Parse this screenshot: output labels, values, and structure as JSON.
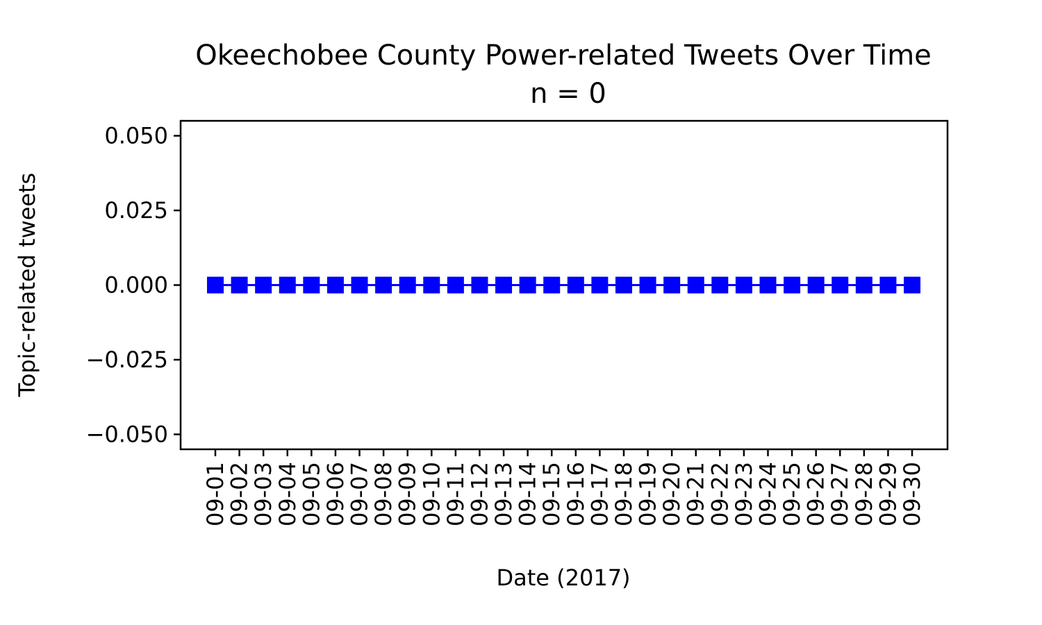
{
  "chart_data": {
    "type": "line",
    "title": "Okeechobee County Power-related Tweets Over Time",
    "subtitle": "n = 0",
    "xlabel": "Date (2017)",
    "ylabel": "Topic-related tweets",
    "categories": [
      "09-01",
      "09-02",
      "09-03",
      "09-04",
      "09-05",
      "09-06",
      "09-07",
      "09-08",
      "09-09",
      "09-10",
      "09-11",
      "09-12",
      "09-13",
      "09-14",
      "09-15",
      "09-16",
      "09-17",
      "09-18",
      "09-19",
      "09-20",
      "09-21",
      "09-22",
      "09-23",
      "09-24",
      "09-25",
      "09-26",
      "09-27",
      "09-28",
      "09-29",
      "09-30"
    ],
    "series": [
      {
        "values": [
          0,
          0,
          0,
          0,
          0,
          0,
          0,
          0,
          0,
          0,
          0,
          0,
          0,
          0,
          0,
          0,
          0,
          0,
          0,
          0,
          0,
          0,
          0,
          0,
          0,
          0,
          0,
          0,
          0,
          0
        ],
        "color": "#0000ff",
        "marker": "square"
      }
    ],
    "yticks": [
      0.05,
      0.025,
      0.0,
      -0.025,
      -0.05
    ],
    "ytick_labels": [
      "0.050",
      "0.025",
      "0.000",
      "−0.025",
      "−0.050"
    ],
    "ylim": [
      -0.055,
      0.055
    ],
    "grid": false
  }
}
